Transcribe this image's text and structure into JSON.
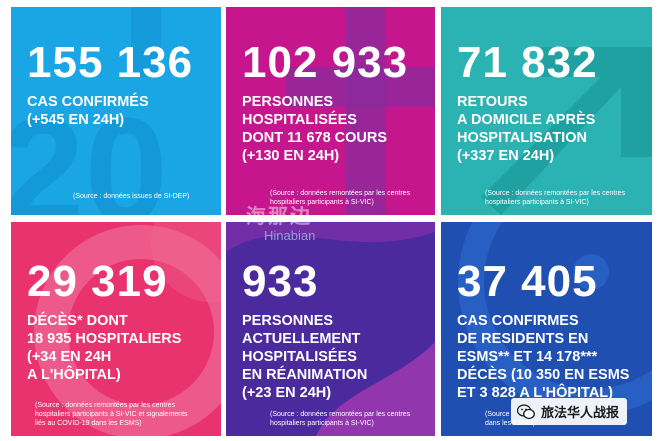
{
  "tiles": [
    {
      "number": "155 136",
      "lines": [
        "CAS CONFIRMÉS",
        "(+545 EN 24H)"
      ],
      "source": [
        "(Source : données issues de SI-DEP)"
      ],
      "color": "#1aa6e4"
    },
    {
      "number": "102 933",
      "lines": [
        "PERSONNES",
        "HOSPITALISÉES",
        "DONT 11 678 COURS",
        "(+130 EN 24H)"
      ],
      "source": [
        "(Source : données remontées par les centres",
        "hospitaliers participants à SI-VIC)"
      ],
      "color": "#c6168d"
    },
    {
      "number": "71 832",
      "lines": [
        "RETOURS",
        "A DOMICILE APRÈS",
        "HOSPITALISATION",
        "(+337 EN 24H)"
      ],
      "source": [
        "(Source : données remontées par les centres",
        "hospitaliers participants à SI-VIC)"
      ],
      "color": "#2bb2b2"
    },
    {
      "number": "29 319",
      "lines": [
        "DÉCÈS* DONT",
        "18 935 HOSPITALIERS",
        "(+34 EN 24H",
        "A L'HÔPITAL)"
      ],
      "source": [
        "(Source : données remontées par les centres",
        "hospitaliers participants à SI-VIC et signalements",
        "liés au COVID-19 dans les ESMS)"
      ],
      "color": "#e8336e"
    },
    {
      "number": "933",
      "lines": [
        "PERSONNES",
        "ACTUELLEMENT",
        "HOSPITALISÉES",
        "EN RÉANIMATION",
        "(+23 EN 24H)"
      ],
      "source": [
        "(Source : données remontées par les centres",
        "hospitaliers participants à SI-VIC)"
      ],
      "color": "#4b2a9e"
    },
    {
      "number": "37 405",
      "lines": [
        "CAS CONFIRMES",
        "DE RESIDENTS EN",
        "ESMS** ET 14 178***",
        "DÉCÈS (10 350 EN ESMS",
        "ET 3 828 A L'HÔPITAL)"
      ],
      "source": [
        "(Source",
        "dans les ESMS)"
      ],
      "color": "#1f4fb0"
    }
  ],
  "watermark": {
    "cn": "海那边",
    "en": "Hinabian"
  },
  "badge": {
    "text": "旅法华人战报",
    "icon": "wechat-icon"
  }
}
